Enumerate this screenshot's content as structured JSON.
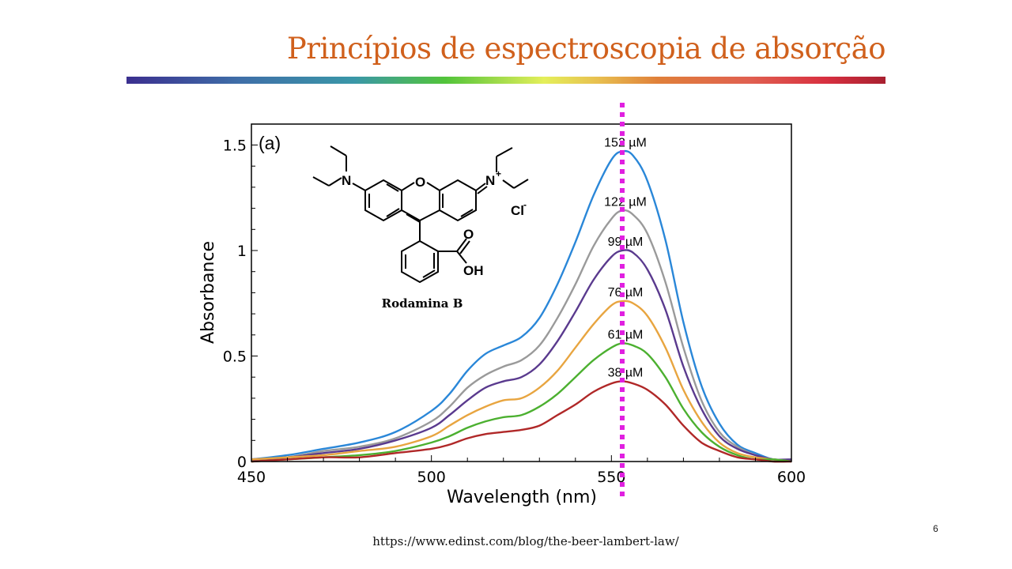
{
  "slide": {
    "title": "Princípios de espectroscopia de absorção",
    "page_number": "6",
    "source_url": "https://www.edinst.com/blog/the-beer-lambert-law/",
    "title_color": "#d0601c"
  },
  "molecule": {
    "name": "Rodamina B",
    "atoms": {
      "n_left": "N",
      "o_ring": "O",
      "n_right": "N",
      "plus": "+",
      "o_carbonyl": "O",
      "oh": "OH",
      "counterion": "Cl",
      "minus": "-"
    }
  },
  "chart_data": {
    "type": "line",
    "panel_label": "(a)",
    "xlabel": "Wavelength (nm)",
    "ylabel": "Absorbance",
    "xlim": [
      450,
      600
    ],
    "ylim": [
      0,
      1.6
    ],
    "xticks": [
      450,
      500,
      550,
      600
    ],
    "yticks": [
      0,
      0.5,
      1,
      1.5
    ],
    "ytick_labels": [
      "0",
      "0.5",
      "1",
      "1.5"
    ],
    "xtick_labels": [
      "450",
      "500",
      "550",
      "600"
    ],
    "grid": false,
    "marker_line": {
      "x": 553,
      "color": "#e020e0",
      "style": "dotted"
    },
    "x": [
      450,
      460,
      470,
      480,
      490,
      500,
      505,
      510,
      515,
      520,
      525,
      530,
      535,
      540,
      545,
      550,
      553,
      556,
      560,
      565,
      570,
      575,
      580,
      585,
      590,
      595,
      600
    ],
    "series": [
      {
        "label": "152 µM",
        "color": "#2a87d8",
        "values": [
          0.01,
          0.03,
          0.06,
          0.09,
          0.14,
          0.24,
          0.32,
          0.43,
          0.51,
          0.55,
          0.59,
          0.68,
          0.84,
          1.04,
          1.26,
          1.43,
          1.47,
          1.45,
          1.33,
          1.05,
          0.66,
          0.36,
          0.18,
          0.08,
          0.04,
          0.01,
          0.01
        ]
      },
      {
        "label": "122 µM",
        "color": "#9a9a9a",
        "values": [
          0.01,
          0.02,
          0.05,
          0.07,
          0.11,
          0.19,
          0.26,
          0.35,
          0.41,
          0.45,
          0.48,
          0.55,
          0.68,
          0.84,
          1.02,
          1.15,
          1.19,
          1.17,
          1.08,
          0.85,
          0.54,
          0.29,
          0.14,
          0.07,
          0.03,
          0.01,
          0.01
        ]
      },
      {
        "label": "99 µM",
        "color": "#5a3a8e",
        "values": [
          0.01,
          0.02,
          0.04,
          0.06,
          0.1,
          0.16,
          0.22,
          0.29,
          0.35,
          0.38,
          0.4,
          0.46,
          0.57,
          0.71,
          0.86,
          0.97,
          1.0,
          0.99,
          0.91,
          0.72,
          0.45,
          0.25,
          0.12,
          0.06,
          0.03,
          0.01,
          0.01
        ]
      },
      {
        "label": "76 µM",
        "color": "#e8a540",
        "values": [
          0.01,
          0.02,
          0.03,
          0.05,
          0.07,
          0.12,
          0.17,
          0.22,
          0.26,
          0.29,
          0.3,
          0.35,
          0.43,
          0.54,
          0.65,
          0.74,
          0.76,
          0.75,
          0.69,
          0.54,
          0.34,
          0.19,
          0.09,
          0.04,
          0.02,
          0.01,
          0
        ]
      },
      {
        "label": "61 µM",
        "color": "#4cb030",
        "values": [
          0,
          0.01,
          0.02,
          0.03,
          0.05,
          0.09,
          0.12,
          0.16,
          0.19,
          0.21,
          0.22,
          0.26,
          0.32,
          0.4,
          0.48,
          0.54,
          0.56,
          0.55,
          0.51,
          0.4,
          0.25,
          0.14,
          0.07,
          0.03,
          0.01,
          0.01,
          0
        ]
      },
      {
        "label": "38 µM",
        "color": "#b02828",
        "values": [
          0,
          0.01,
          0.02,
          0.02,
          0.04,
          0.06,
          0.08,
          0.11,
          0.13,
          0.14,
          0.15,
          0.17,
          0.22,
          0.27,
          0.33,
          0.37,
          0.38,
          0.37,
          0.34,
          0.27,
          0.17,
          0.09,
          0.05,
          0.02,
          0.01,
          0,
          0
        ]
      }
    ]
  }
}
